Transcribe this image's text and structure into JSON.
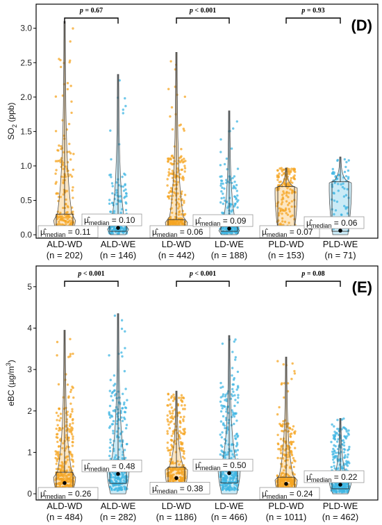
{
  "colors": {
    "WD": "#f5a623",
    "WE": "#3fb6e3"
  },
  "chart_data": [
    {
      "type": "violin-box",
      "panel_label": "(D)",
      "ylabel_main": "SO",
      "ylabel_sub": "2",
      "ylabel_tail": " (ppb)",
      "ylim": [
        -0.05,
        3.35
      ],
      "yticks": [
        "0.0",
        "0.5",
        "1.0",
        "1.5",
        "2.0",
        "2.5",
        "3.0"
      ],
      "ytick_values": [
        0,
        0.5,
        1.0,
        1.5,
        2.0,
        2.5,
        3.0
      ],
      "categories": [
        "ALD-WD",
        "ALD-WE",
        "LD-WD",
        "LD-WE",
        "PLD-WD",
        "PLD-WE"
      ],
      "n_labels": [
        "(n = 202)",
        "(n = 146)",
        "(n = 442)",
        "(n = 188)",
        "(n = 153)",
        "(n = 71)"
      ],
      "group_type": [
        "WD",
        "WE",
        "WD",
        "WE",
        "WD",
        "WE"
      ],
      "medians": [
        0.11,
        0.1,
        0.06,
        0.09,
        0.07,
        0.06
      ],
      "median_labels": [
        "0.11",
        "0.10",
        "0.06",
        "0.09",
        "0.07",
        "0.06"
      ],
      "q1": [
        0.07,
        0.05,
        0.04,
        0.05,
        0.05,
        0.05
      ],
      "q3": [
        0.3,
        0.14,
        0.22,
        0.12,
        0.7,
        0.77
      ],
      "max": [
        3.1,
        2.33,
        2.65,
        1.8,
        0.97,
        1.13
      ],
      "counts": [
        202,
        146,
        442,
        188,
        153,
        71
      ],
      "comparisons": [
        {
          "pair": [
            0,
            1
          ],
          "p": "p = 0.67"
        },
        {
          "pair": [
            2,
            3
          ],
          "p": "p < 0.001"
        },
        {
          "pair": [
            4,
            5
          ],
          "p": "p = 0.93"
        }
      ]
    },
    {
      "type": "violin-box",
      "panel_label": "(E)",
      "ylabel_main": "eBC (µg/m",
      "ylabel_sup": "3",
      "ylabel_tail": ")",
      "ylim": [
        -0.15,
        5.5
      ],
      "yticks": [
        "0",
        "1",
        "2",
        "3",
        "4",
        "5"
      ],
      "ytick_values": [
        0,
        1,
        2,
        3,
        4,
        5
      ],
      "categories": [
        "ALD-WD",
        "ALD-WE",
        "LD-WD",
        "LD-WE",
        "PLD-WD",
        "PLD-WE"
      ],
      "n_labels": [
        "(n = 484)",
        "(n = 282)",
        "(n = 1186)",
        "(n = 466)",
        "(n = 1011)",
        "(n = 462)"
      ],
      "group_type": [
        "WD",
        "WE",
        "WD",
        "WE",
        "WD",
        "WE"
      ],
      "medians": [
        0.26,
        0.48,
        0.38,
        0.5,
        0.24,
        0.22
      ],
      "median_labels": [
        "0.26",
        "0.48",
        "0.38",
        "0.50",
        "0.24",
        "0.22"
      ],
      "q1": [
        0.14,
        0.25,
        0.22,
        0.26,
        0.12,
        0.12
      ],
      "q3": [
        0.52,
        0.7,
        0.64,
        0.72,
        0.4,
        0.38
      ],
      "max": [
        3.95,
        4.35,
        2.48,
        3.82,
        3.3,
        1.82
      ],
      "counts": [
        484,
        282,
        1186,
        466,
        1011,
        462
      ],
      "comparisons": [
        {
          "pair": [
            0,
            1
          ],
          "p": "p < 0.001"
        },
        {
          "pair": [
            2,
            3
          ],
          "p": "p < 0.001"
        },
        {
          "pair": [
            4,
            5
          ],
          "p": "p = 0.08"
        }
      ]
    }
  ]
}
